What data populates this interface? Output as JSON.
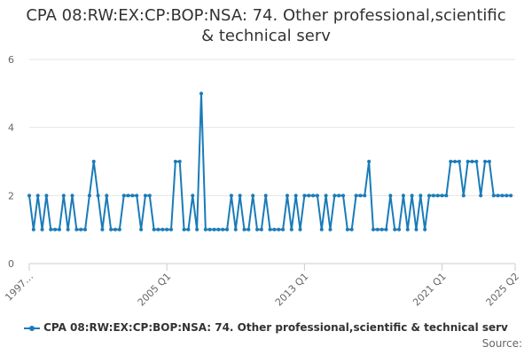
{
  "chart_data": {
    "type": "line",
    "title": "CPA 08:RW:EX:CP:BOP:NSA: 74. Other professional,scientific & technical serv",
    "x_start": "1997 Q1",
    "x_end": "2025 Q2",
    "x_tick_labels": [
      {
        "quarter": "1997 Q1",
        "label": "1997…"
      },
      {
        "quarter": "2005 Q1",
        "label": "2005 Q1"
      },
      {
        "quarter": "2013 Q1",
        "label": "2013 Q1"
      },
      {
        "quarter": "2021 Q1",
        "label": "2021 Q1"
      },
      {
        "quarter": "2025 Q2",
        "label": "2025 Q2"
      }
    ],
    "ylim": [
      0,
      6
    ],
    "y_ticks": [
      0,
      2,
      4,
      6
    ],
    "grid": "horizontal",
    "legend_position": "bottom",
    "series": [
      {
        "name": "CPA 08:RW:EX:CP:BOP:NSA: 74. Other professional,scientific & technical serv",
        "color": "#1a7bb9",
        "values": [
          2,
          1,
          2,
          1,
          2,
          1,
          1,
          1,
          2,
          1,
          2,
          1,
          1,
          1,
          2,
          3,
          2,
          1,
          2,
          1,
          1,
          1,
          2,
          2,
          2,
          2,
          1,
          2,
          2,
          1,
          1,
          1,
          1,
          1,
          3,
          3,
          1,
          1,
          2,
          1,
          5,
          1,
          1,
          1,
          1,
          1,
          1,
          2,
          1,
          2,
          1,
          1,
          2,
          1,
          1,
          2,
          1,
          1,
          1,
          1,
          2,
          1,
          2,
          1,
          2,
          2,
          2,
          2,
          1,
          2,
          1,
          2,
          2,
          2,
          1,
          1,
          2,
          2,
          2,
          3,
          1,
          1,
          1,
          1,
          2,
          1,
          1,
          2,
          1,
          2,
          1,
          2,
          1,
          2,
          2,
          2,
          2,
          2,
          3,
          3,
          3,
          2,
          3,
          3,
          3,
          2,
          3,
          3,
          2,
          2,
          2,
          2,
          2
        ]
      }
    ],
    "source_label": "Source:"
  }
}
